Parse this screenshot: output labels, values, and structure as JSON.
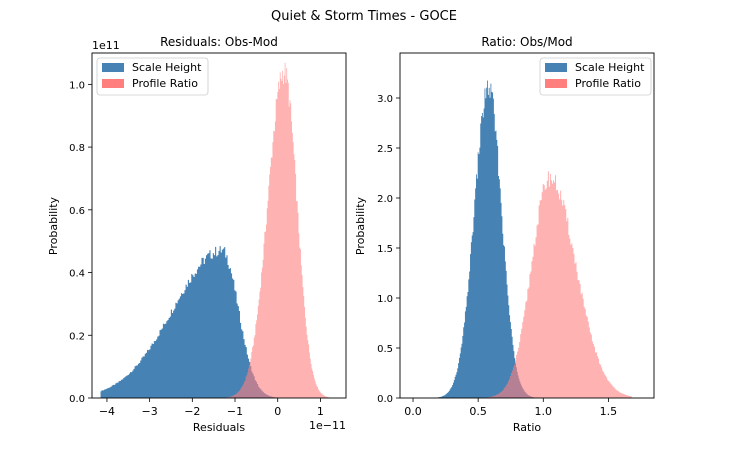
{
  "suptitle": "Quiet & Storm Times - GOCE",
  "colors": {
    "scale_height": "#4682b4",
    "profile_ratio": "#ff7f7f",
    "overlap": "#a04060"
  },
  "chart_data": [
    {
      "type": "histogram",
      "title": "Residuals: Obs-Mod",
      "xlabel": "Residuals",
      "ylabel": "Probability",
      "x_offset_label": "1e−11",
      "y_offset_label": "1e11",
      "x_scale": 1e-11,
      "y_scale": 100000000000.0,
      "xlim": [
        -4.35,
        1.6
      ],
      "ylim": [
        0,
        1.1
      ],
      "xticks": [
        -4,
        -3,
        -2,
        -1,
        0,
        1
      ],
      "xtick_labels": [
        "−4",
        "−3",
        "−2",
        "−1",
        "0",
        "1"
      ],
      "yticks": [
        0.0,
        0.2,
        0.4,
        0.6,
        0.8,
        1.0
      ],
      "ytick_labels": [
        "0.0",
        "0.2",
        "0.4",
        "0.6",
        "0.8",
        "1.0"
      ],
      "legend_position": "top-left",
      "series": [
        {
          "name": "Scale Height",
          "distribution": "skewed",
          "x_range": [
            -4.15,
            0.1
          ],
          "peak": -1.3,
          "sigma_left": 1.15,
          "sigma_right": 0.38,
          "peak_value": 0.47,
          "bins": 160
        },
        {
          "name": "Profile Ratio",
          "distribution": "skewed",
          "x_range": [
            -1.8,
            1.25
          ],
          "peak": 0.15,
          "sigma_left": 0.38,
          "sigma_right": 0.3,
          "peak_value": 1.04,
          "bins": 160
        }
      ]
    },
    {
      "type": "histogram",
      "title": "Ratio: Obs/Mod",
      "xlabel": "Ratio",
      "ylabel": "Probability",
      "xlim": [
        -0.1,
        1.85
      ],
      "ylim": [
        0,
        3.45
      ],
      "xticks": [
        0.0,
        0.5,
        1.0,
        1.5
      ],
      "xtick_labels": [
        "0.0",
        "0.5",
        "1.0",
        "1.5"
      ],
      "yticks": [
        0.0,
        0.5,
        1.0,
        1.5,
        2.0,
        2.5,
        3.0
      ],
      "ytick_labels": [
        "0.0",
        "0.5",
        "1.0",
        "1.5",
        "2.0",
        "2.5",
        "3.0"
      ],
      "legend_position": "top-right",
      "series": [
        {
          "name": "Scale Height",
          "distribution": "skewed",
          "x_range": [
            0.15,
            1.0
          ],
          "peak": 0.58,
          "sigma_left": 0.11,
          "sigma_right": 0.1,
          "peak_value": 3.1,
          "bins": 130
        },
        {
          "name": "Profile Ratio",
          "distribution": "skewed",
          "x_range": [
            0.5,
            1.68
          ],
          "peak": 1.05,
          "sigma_left": 0.14,
          "sigma_right": 0.2,
          "peak_value": 2.2,
          "bins": 150
        }
      ]
    }
  ]
}
